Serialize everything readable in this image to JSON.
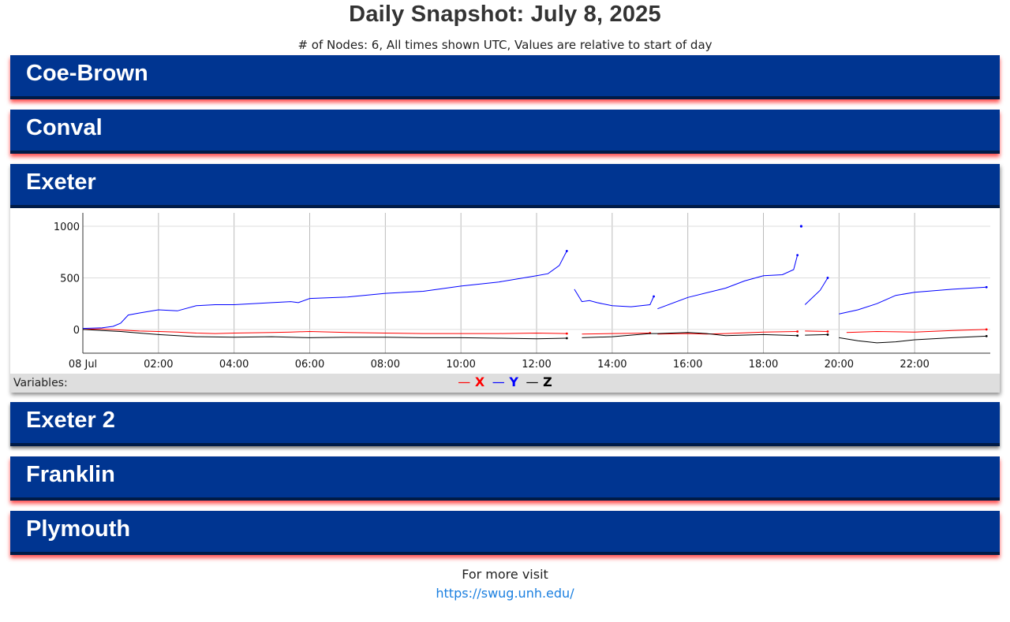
{
  "header": {
    "title": "Daily Snapshot: July 8, 2025",
    "subtitle": "# of Nodes: 6, All times shown UTC, Values are relative to start of day"
  },
  "panels": [
    {
      "name": "Coe-Brown",
      "expanded": false
    },
    {
      "name": "Conval",
      "expanded": false
    },
    {
      "name": "Exeter",
      "expanded": true
    },
    {
      "name": "Exeter 2",
      "expanded": false
    },
    {
      "name": "Franklin",
      "expanded": false
    },
    {
      "name": "Plymouth",
      "expanded": false
    }
  ],
  "legend": {
    "label": "Variables:",
    "items": [
      {
        "name": "X",
        "color": "#ff0000"
      },
      {
        "name": "Y",
        "color": "#0000ff"
      },
      {
        "name": "Z",
        "color": "#000000"
      }
    ]
  },
  "footer": {
    "text": "For more visit",
    "link": "https://swug.unh.edu/"
  },
  "chart_data": {
    "type": "line",
    "title": "",
    "xlabel": "",
    "ylabel": "",
    "x_ticks": [
      "08 Jul",
      "02:00",
      "04:00",
      "06:00",
      "08:00",
      "10:00",
      "12:00",
      "14:00",
      "16:00",
      "18:00",
      "20:00",
      "22:00"
    ],
    "y_ticks": [
      0,
      500,
      1000
    ],
    "xlim": [
      0,
      24
    ],
    "ylim": [
      -230,
      1130
    ],
    "grid": true,
    "series": [
      {
        "name": "X",
        "color": "#ff0000",
        "segments": [
          [
            [
              0,
              0
            ],
            [
              0.5,
              5
            ],
            [
              1,
              -5
            ],
            [
              1.5,
              -15
            ],
            [
              2,
              -20
            ],
            [
              2.5,
              -25
            ],
            [
              3,
              -35
            ],
            [
              3.5,
              -40
            ],
            [
              4,
              -35
            ],
            [
              5,
              -30
            ],
            [
              5.5,
              -25
            ],
            [
              6,
              -20
            ],
            [
              7,
              -30
            ],
            [
              8,
              -35
            ],
            [
              9,
              -40
            ],
            [
              10,
              -40
            ],
            [
              11,
              -40
            ],
            [
              12,
              -35
            ],
            [
              12.8,
              -40
            ]
          ],
          [
            [
              13.2,
              -45
            ],
            [
              14,
              -40
            ],
            [
              15,
              -35
            ]
          ],
          [
            [
              15.2,
              -45
            ],
            [
              16,
              -40
            ],
            [
              16.5,
              -45
            ],
            [
              17,
              -40
            ],
            [
              18,
              -25
            ],
            [
              18.9,
              -20
            ]
          ],
          [
            [
              19.1,
              -15
            ],
            [
              19.7,
              -20
            ]
          ],
          [
            [
              20.2,
              -30
            ],
            [
              21,
              -20
            ],
            [
              22,
              -25
            ],
            [
              23,
              -10
            ],
            [
              23.9,
              0
            ]
          ]
        ]
      },
      {
        "name": "Y",
        "color": "#0000ff",
        "segments": [
          [
            [
              0,
              10
            ],
            [
              0.5,
              15
            ],
            [
              0.8,
              30
            ],
            [
              1,
              60
            ],
            [
              1.2,
              140
            ],
            [
              1.5,
              160
            ],
            [
              2,
              190
            ],
            [
              2.5,
              180
            ],
            [
              3,
              230
            ],
            [
              3.5,
              240
            ],
            [
              4,
              240
            ],
            [
              5,
              260
            ],
            [
              5.5,
              270
            ],
            [
              5.7,
              260
            ],
            [
              6,
              300
            ],
            [
              7,
              315
            ],
            [
              8,
              350
            ],
            [
              9,
              370
            ],
            [
              10,
              420
            ],
            [
              11,
              460
            ],
            [
              12,
              520
            ],
            [
              12.3,
              540
            ],
            [
              12.6,
              620
            ],
            [
              12.8,
              760
            ]
          ],
          [
            [
              13,
              390
            ],
            [
              13.2,
              270
            ],
            [
              13.4,
              280
            ],
            [
              13.6,
              260
            ],
            [
              14,
              230
            ],
            [
              14.5,
              220
            ],
            [
              15,
              240
            ],
            [
              15.1,
              320
            ]
          ],
          [
            [
              15.2,
              200
            ],
            [
              16,
              310
            ],
            [
              17,
              400
            ],
            [
              17.5,
              470
            ],
            [
              18,
              520
            ],
            [
              18.5,
              530
            ],
            [
              18.8,
              580
            ],
            [
              18.9,
              720
            ]
          ],
          [
            [
              19,
              1000
            ]
          ],
          [
            [
              19.1,
              240
            ],
            [
              19.5,
              380
            ],
            [
              19.7,
              500
            ]
          ],
          [
            [
              20,
              150
            ],
            [
              20.5,
              190
            ],
            [
              21,
              250
            ],
            [
              21.5,
              330
            ],
            [
              22,
              360
            ],
            [
              23,
              390
            ],
            [
              23.9,
              410
            ]
          ]
        ]
      },
      {
        "name": "Z",
        "color": "#000000",
        "segments": [
          [
            [
              0,
              0
            ],
            [
              0.5,
              -10
            ],
            [
              1,
              -20
            ],
            [
              1.5,
              -35
            ],
            [
              2,
              -50
            ],
            [
              2.5,
              -60
            ],
            [
              3,
              -70
            ],
            [
              4,
              -75
            ],
            [
              5,
              -70
            ],
            [
              6,
              -80
            ],
            [
              7,
              -75
            ],
            [
              8,
              -75
            ],
            [
              9,
              -80
            ],
            [
              10,
              -80
            ],
            [
              11,
              -85
            ],
            [
              12,
              -90
            ],
            [
              12.8,
              -85
            ]
          ],
          [
            [
              13.2,
              -80
            ],
            [
              14,
              -70
            ],
            [
              15,
              -40
            ],
            [
              15.2,
              -40
            ],
            [
              16,
              -30
            ],
            [
              16.5,
              -40
            ],
            [
              17,
              -60
            ],
            [
              18,
              -50
            ],
            [
              18.9,
              -60
            ]
          ],
          [
            [
              19.1,
              -55
            ],
            [
              19.7,
              -50
            ]
          ],
          [
            [
              20,
              -80
            ],
            [
              20.5,
              -110
            ],
            [
              21,
              -130
            ],
            [
              21.5,
              -120
            ],
            [
              22,
              -100
            ],
            [
              23,
              -80
            ],
            [
              23.9,
              -65
            ]
          ]
        ]
      }
    ]
  }
}
